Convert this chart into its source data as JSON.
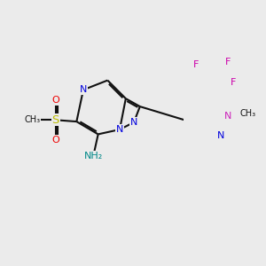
{
  "background_color": "#ebebeb",
  "N_color": "#0000dd",
  "N_pink_color": "#cc22bb",
  "S_color": "#bbbb00",
  "O_color": "#ee0000",
  "F_color": "#cc00aa",
  "H_color": "#008888",
  "bond_color": "#111111",
  "bond_lw": 1.5,
  "fs": 8.0,
  "figsize": [
    3.0,
    3.0
  ],
  "dpi": 100,
  "xlim": [
    0,
    10
  ],
  "ylim": [
    0,
    10
  ]
}
